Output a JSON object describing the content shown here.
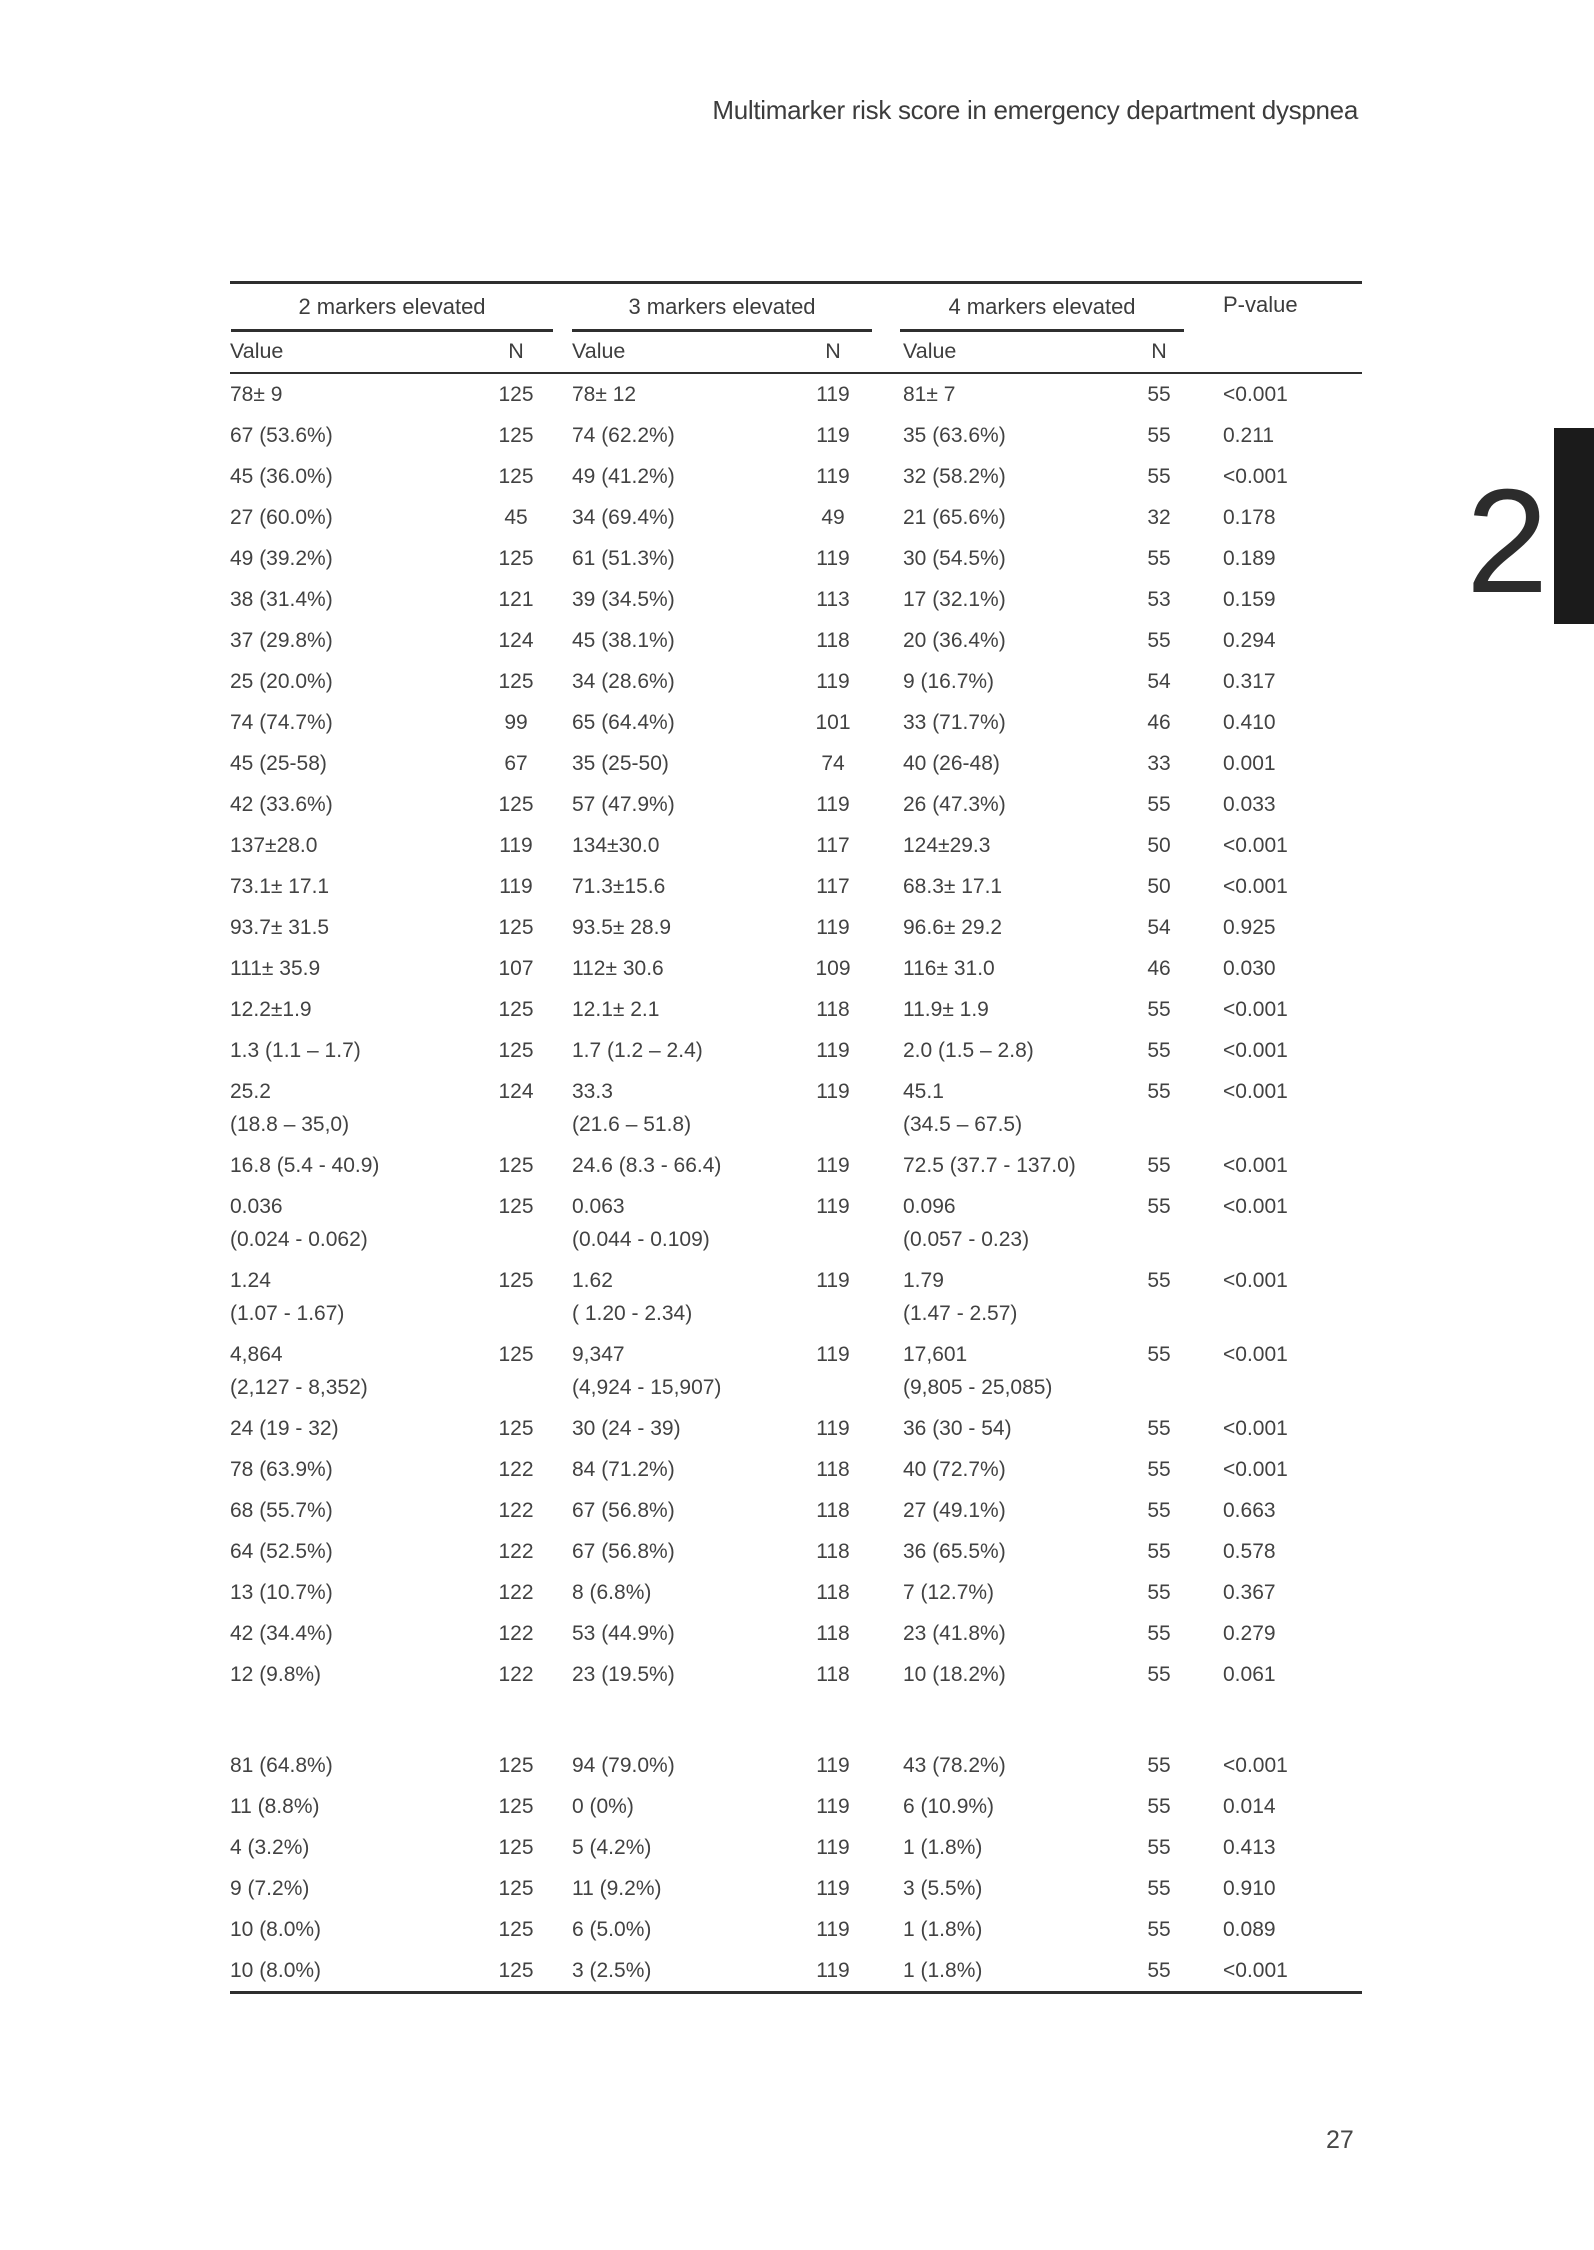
{
  "page": {
    "running_header": "Multimarker risk score in emergency department dyspnea",
    "chapter_tab_number": "2",
    "page_number": "27"
  },
  "table": {
    "groups": [
      {
        "label": "2 markers elevated"
      },
      {
        "label": "3 markers elevated"
      },
      {
        "label": "4 markers elevated"
      }
    ],
    "pvalue_header": "P-value",
    "subheaders": {
      "value": "Value",
      "n": "N"
    },
    "rows": [
      {
        "v1": "78± 9",
        "n1": "125",
        "v2": "78± 12",
        "n2": "119",
        "v3": "81± 7",
        "n3": "55",
        "p": "<0.001"
      },
      {
        "v1": "67 (53.6%)",
        "n1": "125",
        "v2": "74 (62.2%)",
        "n2": "119",
        "v3": "35 (63.6%)",
        "n3": "55",
        "p": "0.211"
      },
      {
        "v1": "45 (36.0%)",
        "n1": "125",
        "v2": "49 (41.2%)",
        "n2": "119",
        "v3": "32 (58.2%)",
        "n3": "55",
        "p": "<0.001"
      },
      {
        "v1": "27 (60.0%)",
        "n1": "45",
        "v2": "34 (69.4%)",
        "n2": "49",
        "v3": "21 (65.6%)",
        "n3": "32",
        "p": "0.178"
      },
      {
        "v1": "49 (39.2%)",
        "n1": "125",
        "v2": "61 (51.3%)",
        "n2": "119",
        "v3": "30 (54.5%)",
        "n3": "55",
        "p": "0.189"
      },
      {
        "v1": "38 (31.4%)",
        "n1": "121",
        "v2": "39 (34.5%)",
        "n2": "113",
        "v3": "17 (32.1%)",
        "n3": "53",
        "p": "0.159"
      },
      {
        "v1": "37 (29.8%)",
        "n1": "124",
        "v2": "45 (38.1%)",
        "n2": "118",
        "v3": "20 (36.4%)",
        "n3": "55",
        "p": "0.294"
      },
      {
        "v1": "25 (20.0%)",
        "n1": "125",
        "v2": "34 (28.6%)",
        "n2": "119",
        "v3": "9 (16.7%)",
        "n3": "54",
        "p": "0.317"
      },
      {
        "v1": "74 (74.7%)",
        "n1": "99",
        "v2": "65 (64.4%)",
        "n2": "101",
        "v3": "33 (71.7%)",
        "n3": "46",
        "p": "0.410"
      },
      {
        "v1": "45 (25-58)",
        "n1": "67",
        "v2": "35 (25-50)",
        "n2": "74",
        "v3": "40 (26-48)",
        "n3": "33",
        "p": "0.001"
      },
      {
        "v1": "42 (33.6%)",
        "n1": "125",
        "v2": "57 (47.9%)",
        "n2": "119",
        "v3": "26 (47.3%)",
        "n3": "55",
        "p": "0.033"
      },
      {
        "v1": "137±28.0",
        "n1": "119",
        "v2": "134±30.0",
        "n2": "117",
        "v3": "124±29.3",
        "n3": "50",
        "p": "<0.001"
      },
      {
        "v1": "73.1± 17.1",
        "n1": "119",
        "v2": "71.3±15.6",
        "n2": "117",
        "v3": "68.3± 17.1",
        "n3": "50",
        "p": "<0.001"
      },
      {
        "v1": "93.7± 31.5",
        "n1": "125",
        "v2": "93.5± 28.9",
        "n2": "119",
        "v3": "96.6± 29.2",
        "n3": "54",
        "p": "0.925"
      },
      {
        "v1": "111± 35.9",
        "n1": "107",
        "v2": "112± 30.6",
        "n2": "109",
        "v3": "116± 31.0",
        "n3": "46",
        "p": "0.030"
      },
      {
        "v1": "12.2±1.9",
        "n1": "125",
        "v2": "12.1± 2.1",
        "n2": "118",
        "v3": "11.9± 1.9",
        "n3": "55",
        "p": "<0.001"
      },
      {
        "v1": "1.3 (1.1 – 1.7)",
        "n1": "125",
        "v2": "1.7 (1.2 – 2.4)",
        "n2": "119",
        "v3": "2.0 (1.5 – 2.8)",
        "n3": "55",
        "p": "<0.001"
      },
      {
        "v1": "25.2\n(18.8 – 35,0)",
        "n1": "124",
        "v2": "33.3\n(21.6 – 51.8)",
        "n2": "119",
        "v3": "45.1\n(34.5 – 67.5)",
        "n3": "55",
        "p": "<0.001"
      },
      {
        "v1": "16.8 (5.4 - 40.9)",
        "n1": "125",
        "v2": "24.6 (8.3 - 66.4)",
        "n2": "119",
        "v3": "72.5 (37.7 - 137.0)",
        "n3": "55",
        "p": "<0.001"
      },
      {
        "v1": "0.036\n(0.024 - 0.062)",
        "n1": "125",
        "v2": "0.063\n(0.044 - 0.109)",
        "n2": "119",
        "v3": "0.096\n(0.057 - 0.23)",
        "n3": "55",
        "p": "<0.001"
      },
      {
        "v1": "1.24\n(1.07 - 1.67)",
        "n1": "125",
        "v2": "1.62\n( 1.20 - 2.34)",
        "n2": "119",
        "v3": "1.79\n(1.47 - 2.57)",
        "n3": "55",
        "p": "<0.001"
      },
      {
        "v1": "4,864\n(2,127 - 8,352)",
        "n1": "125",
        "v2": "9,347\n(4,924 - 15,907)",
        "n2": "119",
        "v3": "17,601\n(9,805 - 25,085)",
        "n3": "55",
        "p": "<0.001"
      },
      {
        "v1": "24 (19 - 32)",
        "n1": "125",
        "v2": "30 (24 - 39)",
        "n2": "119",
        "v3": "36 (30 - 54)",
        "n3": "55",
        "p": "<0.001"
      },
      {
        "v1": "78 (63.9%)",
        "n1": "122",
        "v2": "84 (71.2%)",
        "n2": "118",
        "v3": "40 (72.7%)",
        "n3": "55",
        "p": "<0.001"
      },
      {
        "v1": "68 (55.7%)",
        "n1": "122",
        "v2": "67 (56.8%)",
        "n2": "118",
        "v3": "27 (49.1%)",
        "n3": "55",
        "p": "0.663"
      },
      {
        "v1": "64 (52.5%)",
        "n1": "122",
        "v2": "67 (56.8%)",
        "n2": "118",
        "v3": "36 (65.5%)",
        "n3": "55",
        "p": "0.578"
      },
      {
        "v1": "13 (10.7%)",
        "n1": "122",
        "v2": "8 (6.8%)",
        "n2": "118",
        "v3": "7 (12.7%)",
        "n3": "55",
        "p": "0.367"
      },
      {
        "v1": "42 (34.4%)",
        "n1": "122",
        "v2": "53 (44.9%)",
        "n2": "118",
        "v3": "23 (41.8%)",
        "n3": "55",
        "p": "0.279"
      },
      {
        "v1": "12 (9.8%)",
        "n1": "122",
        "v2": "23 (19.5%)",
        "n2": "118",
        "v3": "10 (18.2%)",
        "n3": "55",
        "p": "0.061"
      },
      {
        "spacer": true
      },
      {
        "v1": "81 (64.8%)",
        "n1": "125",
        "v2": "94 (79.0%)",
        "n2": "119",
        "v3": "43 (78.2%)",
        "n3": "55",
        "p": "<0.001"
      },
      {
        "v1": "11 (8.8%)",
        "n1": "125",
        "v2": "0 (0%)",
        "n2": "119",
        "v3": "6 (10.9%)",
        "n3": "55",
        "p": "0.014"
      },
      {
        "v1": "4 (3.2%)",
        "n1": "125",
        "v2": "5 (4.2%)",
        "n2": "119",
        "v3": "1 (1.8%)",
        "n3": "55",
        "p": "0.413"
      },
      {
        "v1": "9 (7.2%)",
        "n1": "125",
        "v2": "11 (9.2%)",
        "n2": "119",
        "v3": "3 (5.5%)",
        "n3": "55",
        "p": "0.910"
      },
      {
        "v1": "10 (8.0%)",
        "n1": "125",
        "v2": "6 (5.0%)",
        "n2": "119",
        "v3": "1 (1.8%)",
        "n3": "55",
        "p": "0.089"
      },
      {
        "v1": "10 (8.0%)",
        "n1": "125",
        "v2": "3 (2.5%)",
        "n2": "119",
        "v3": "1 (1.8%)",
        "n3": "55",
        "p": "<0.001"
      }
    ]
  }
}
